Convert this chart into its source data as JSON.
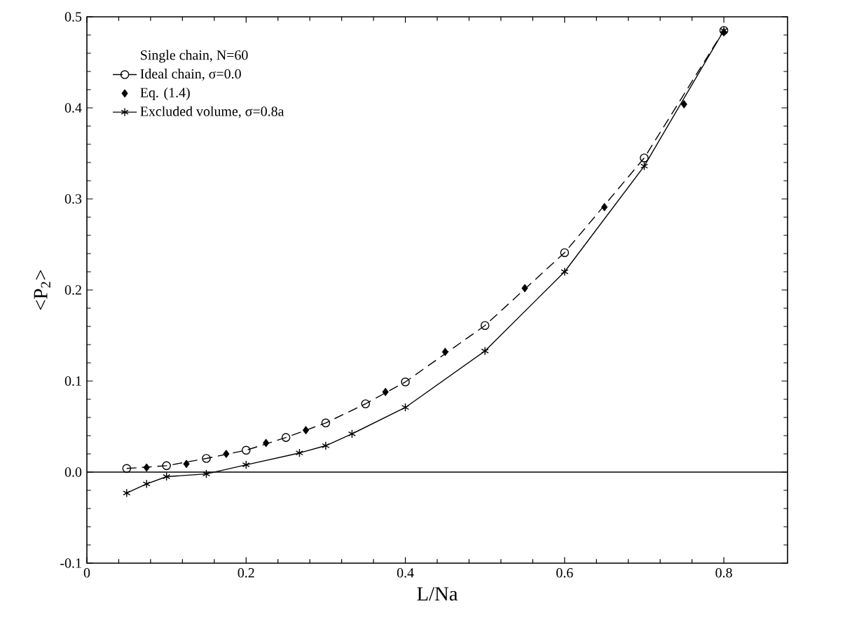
{
  "chart_data": {
    "type": "scatter",
    "xlabel": "L/Na",
    "ylabel": "<P$_{2}$>",
    "legend_title": "Single chain, N=60",
    "legend": "top left",
    "xlim": [
      0,
      0.88
    ],
    "ylim": [
      -0.1,
      0.5
    ],
    "xticks": [
      0,
      0.2,
      0.4,
      0.6,
      0.8
    ],
    "yticks": [
      -0.1,
      {
        "value": 0,
        "label": "0.0"
      },
      0.1,
      0.2,
      0.3,
      0.4,
      0.5
    ],
    "ref_lines": [
      {
        "axis": "y",
        "value": 0,
        "color": "#000000",
        "line_style": "solid"
      }
    ],
    "series": [
      {
        "name": "Ideal chain, σ=0.0",
        "type": "line",
        "marker": "circle",
        "line_style": "dashed",
        "color": "#000000",
        "x": [
          0.05,
          0.1,
          0.15,
          0.2,
          0.25,
          0.3,
          0.35,
          0.4,
          0.5,
          0.6,
          0.7,
          0.8
        ],
        "values": [
          0.004,
          0.007,
          0.015,
          0.024,
          0.038,
          0.054,
          0.075,
          0.099,
          0.161,
          0.241,
          0.345,
          0.485
        ]
      },
      {
        "name": "Eq. (1.4)",
        "marker": "diamond",
        "color": "#000000",
        "x": [
          0.075,
          0.125,
          0.175,
          0.225,
          0.275,
          0.375,
          0.45,
          0.55,
          0.65,
          0.75,
          0.8
        ],
        "values": [
          0.005,
          0.009,
          0.02,
          0.032,
          0.046,
          0.088,
          0.132,
          0.202,
          0.291,
          0.404,
          0.483
        ]
      },
      {
        "name": "Excluded volume, σ=0.8a",
        "type": "line",
        "marker": "cross",
        "line_style": "solid",
        "color": "#000000",
        "x": [
          0.05,
          0.075,
          0.1,
          0.15,
          0.2,
          0.267,
          0.3,
          0.333,
          0.4,
          0.5,
          0.6,
          0.7,
          0.8
        ],
        "values": [
          -0.023,
          -0.013,
          -0.005,
          -0.002,
          0.008,
          0.021,
          0.029,
          0.042,
          0.071,
          0.133,
          0.22,
          0.336,
          0.485
        ]
      }
    ]
  }
}
